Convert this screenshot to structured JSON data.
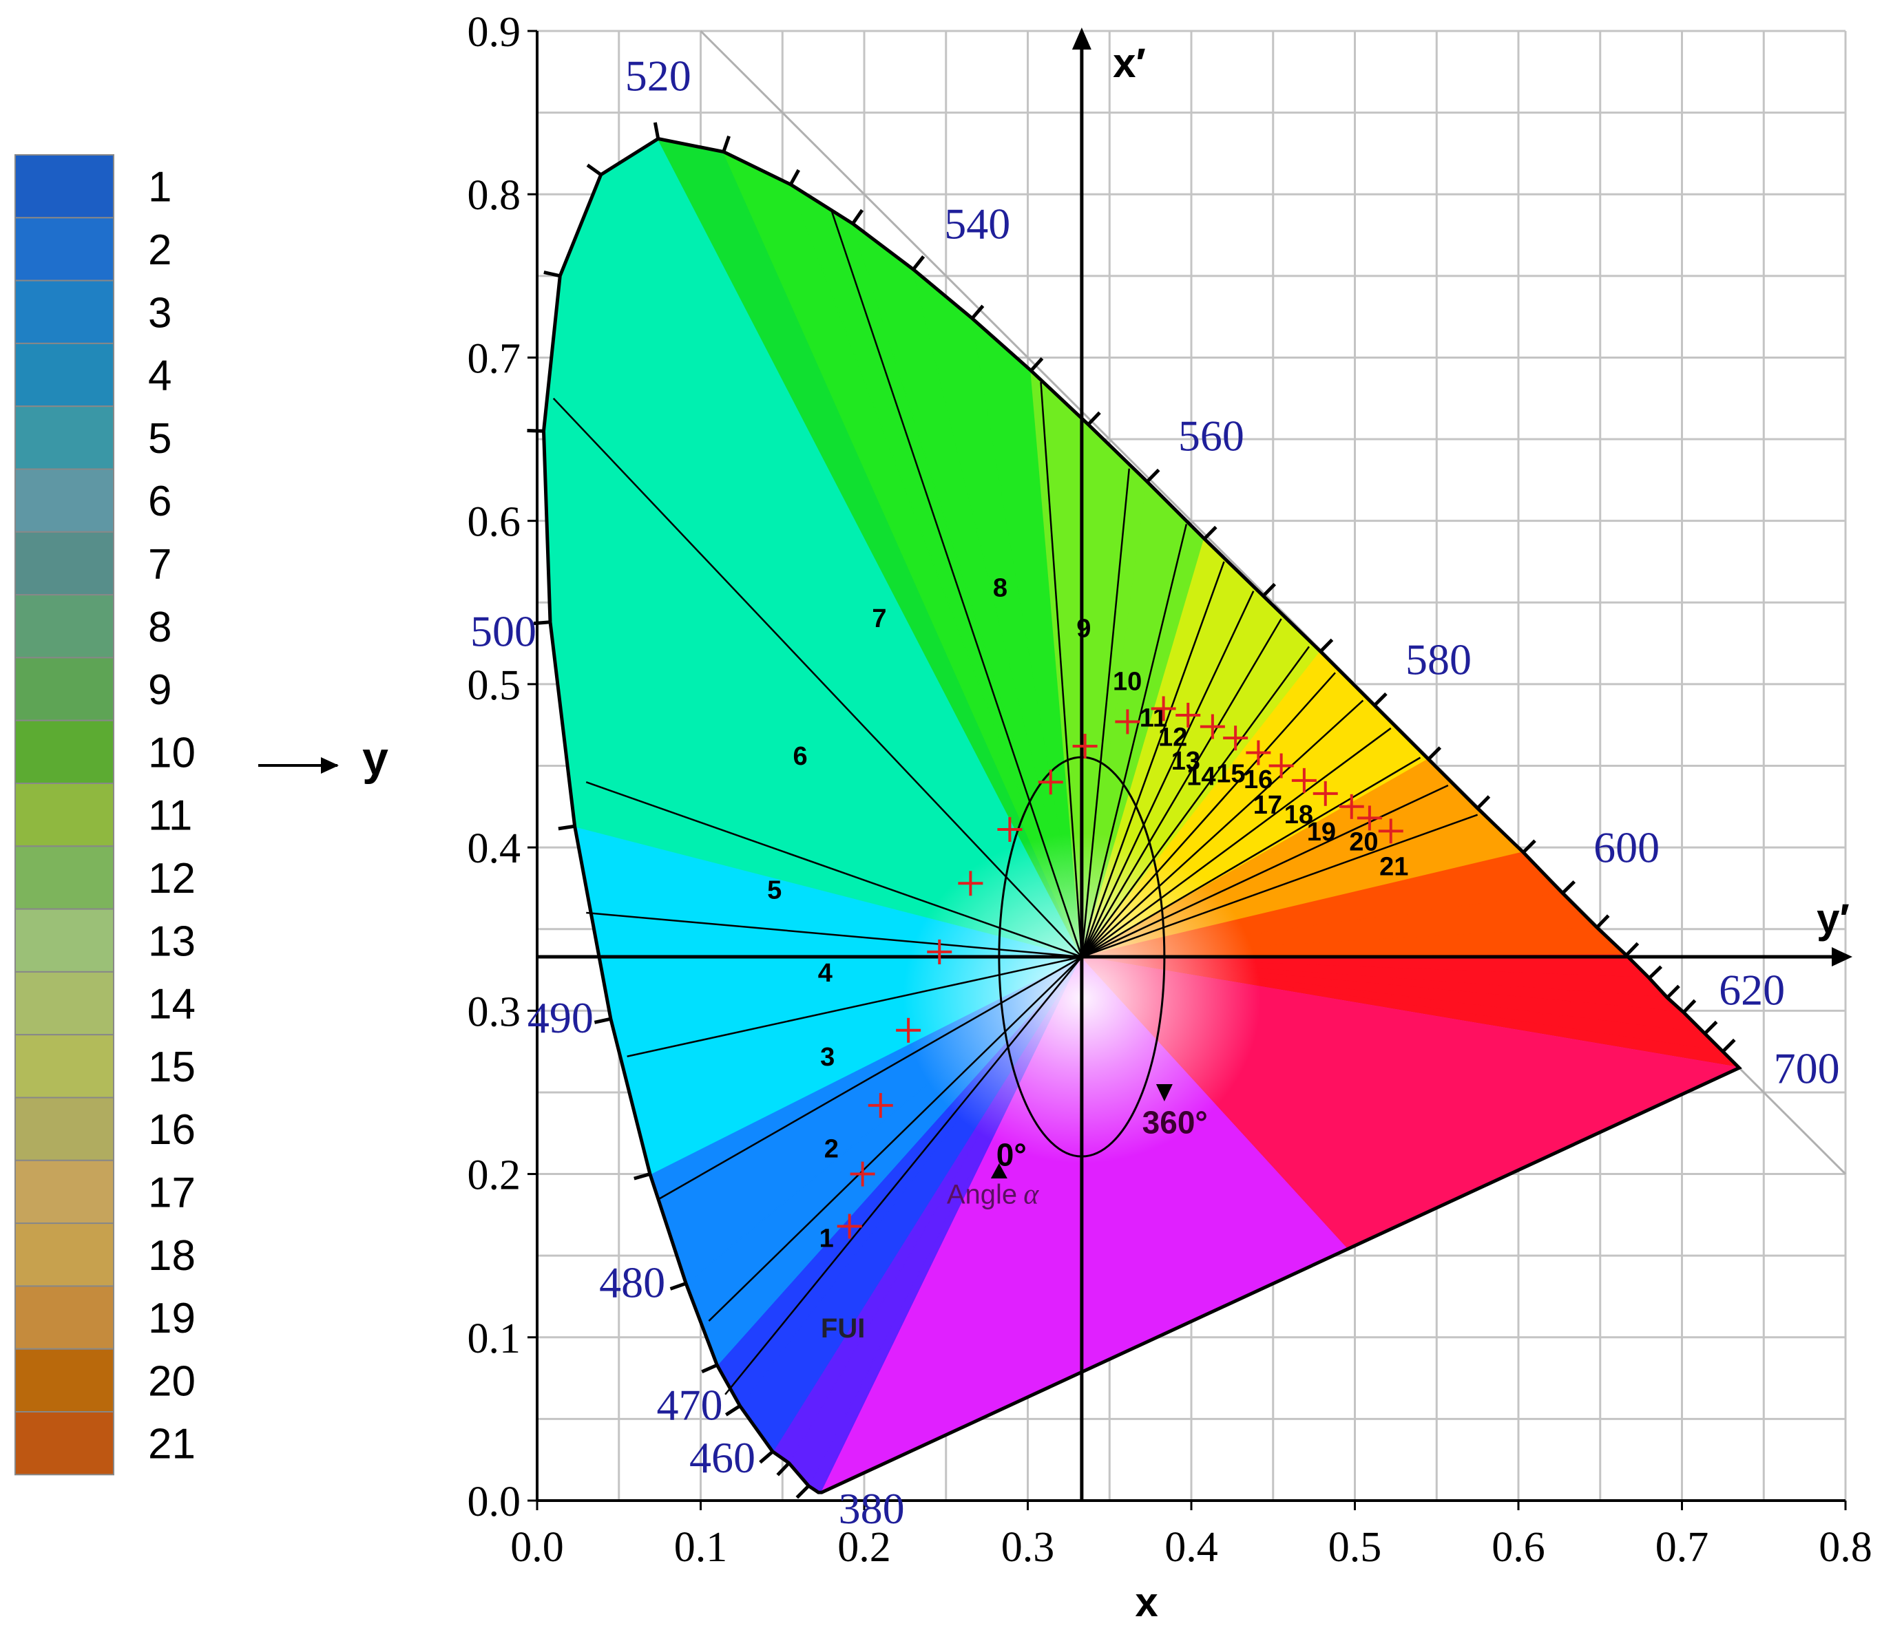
{
  "chart_data": {
    "type": "scatter",
    "title": "",
    "xlabel": "x",
    "ylabel": "y",
    "xlim": [
      0.0,
      0.8
    ],
    "ylim": [
      0.0,
      0.9
    ],
    "grid": true,
    "x_ticks": [
      "0.0",
      "0.1",
      "0.2",
      "0.3",
      "0.4",
      "0.5",
      "0.6",
      "0.7",
      "0.8"
    ],
    "y_ticks": [
      "0.0",
      "0.1",
      "0.2",
      "0.3",
      "0.4",
      "0.5",
      "0.6",
      "0.7",
      "0.8",
      "0.9"
    ],
    "shifted_axes": {
      "x_label": "x′",
      "y_label": "y′",
      "origin": [
        0.333,
        0.333
      ]
    },
    "angle_annotation": {
      "start": "0°",
      "end": "360°",
      "caption": "Angle",
      "symbol": "α"
    },
    "locus_label": "FUI",
    "wavelength_labels": [
      {
        "nm": "380",
        "x": 0.175,
        "y": 0.005
      },
      {
        "nm": "460",
        "x": 0.144,
        "y": 0.03
      },
      {
        "nm": "470",
        "x": 0.124,
        "y": 0.058
      },
      {
        "nm": "480",
        "x": 0.091,
        "y": 0.133
      },
      {
        "nm": "490",
        "x": 0.045,
        "y": 0.295
      },
      {
        "nm": "500",
        "x": 0.008,
        "y": 0.538
      },
      {
        "nm": "520",
        "x": 0.074,
        "y": 0.834
      },
      {
        "nm": "540",
        "x": 0.23,
        "y": 0.754
      },
      {
        "nm": "560",
        "x": 0.373,
        "y": 0.624
      },
      {
        "nm": "580",
        "x": 0.512,
        "y": 0.487
      },
      {
        "nm": "600",
        "x": 0.627,
        "y": 0.372
      },
      {
        "nm": "620",
        "x": 0.691,
        "y": 0.308
      },
      {
        "nm": "700",
        "x": 0.735,
        "y": 0.265
      }
    ],
    "series": [
      {
        "name": "FUI",
        "labels": [
          "1",
          "2",
          "3",
          "4",
          "5",
          "6",
          "7",
          "8",
          "9",
          "10",
          "11",
          "12",
          "13",
          "14",
          "15",
          "16",
          "17",
          "18",
          "19",
          "20",
          "21"
        ],
        "x": [
          0.191,
          0.199,
          0.21,
          0.227,
          0.246,
          0.265,
          0.289,
          0.314,
          0.335,
          0.361,
          0.383,
          0.398,
          0.413,
          0.427,
          0.441,
          0.455,
          0.469,
          0.482,
          0.498,
          0.509,
          0.522
        ],
        "y": [
          0.168,
          0.2,
          0.242,
          0.288,
          0.336,
          0.378,
          0.411,
          0.44,
          0.462,
          0.477,
          0.485,
          0.481,
          0.474,
          0.467,
          0.458,
          0.45,
          0.441,
          0.433,
          0.425,
          0.418,
          0.41
        ]
      }
    ],
    "fui_boundary_lines": [
      {
        "label": "1",
        "x": 0.115,
        "y": 0.065
      },
      {
        "label": "2",
        "x": 0.105,
        "y": 0.11
      },
      {
        "label": "3",
        "x": 0.075,
        "y": 0.185
      },
      {
        "label": "4",
        "x": 0.055,
        "y": 0.272
      },
      {
        "label": "5",
        "x": 0.03,
        "y": 0.36
      },
      {
        "label": "6",
        "x": 0.03,
        "y": 0.44
      },
      {
        "label": "7",
        "x": 0.01,
        "y": 0.675
      },
      {
        "label": "8",
        "x": 0.18,
        "y": 0.79
      },
      {
        "label": "9",
        "x": 0.308,
        "y": 0.685
      },
      {
        "label": "10",
        "x": 0.362,
        "y": 0.632
      },
      {
        "label": "11",
        "x": 0.397,
        "y": 0.598
      },
      {
        "label": "12",
        "x": 0.42,
        "y": 0.575
      },
      {
        "label": "13",
        "x": 0.438,
        "y": 0.557
      },
      {
        "label": "14",
        "x": 0.455,
        "y": 0.54
      },
      {
        "label": "15",
        "x": 0.472,
        "y": 0.523
      },
      {
        "label": "16",
        "x": 0.488,
        "y": 0.507
      },
      {
        "label": "17",
        "x": 0.505,
        "y": 0.49
      },
      {
        "label": "18",
        "x": 0.522,
        "y": 0.473
      },
      {
        "label": "19",
        "x": 0.54,
        "y": 0.455
      },
      {
        "label": "20",
        "x": 0.557,
        "y": 0.438
      },
      {
        "label": "21",
        "x": 0.575,
        "y": 0.42
      }
    ]
  },
  "legend": {
    "items": [
      {
        "label": "1",
        "color": "#1c5ec4"
      },
      {
        "label": "2",
        "color": "#1f6fcc"
      },
      {
        "label": "3",
        "color": "#1f80c4"
      },
      {
        "label": "4",
        "color": "#2289b8"
      },
      {
        "label": "5",
        "color": "#3a97a6"
      },
      {
        "label": "6",
        "color": "#5f97a4"
      },
      {
        "label": "7",
        "color": "#578e8a"
      },
      {
        "label": "8",
        "color": "#5e9e74"
      },
      {
        "label": "9",
        "color": "#5ea455"
      },
      {
        "label": "10",
        "color": "#5cab32"
      },
      {
        "label": "11",
        "color": "#8fb840"
      },
      {
        "label": "12",
        "color": "#7db45c"
      },
      {
        "label": "13",
        "color": "#9bc077"
      },
      {
        "label": "14",
        "color": "#a9bc6a"
      },
      {
        "label": "15",
        "color": "#b2bb5a"
      },
      {
        "label": "16",
        "color": "#b0ac60"
      },
      {
        "label": "17",
        "color": "#c6a45c"
      },
      {
        "label": "18",
        "color": "#c7a14e"
      },
      {
        "label": "19",
        "color": "#c58b3d"
      },
      {
        "label": "20",
        "color": "#b9690c"
      },
      {
        "label": "21",
        "color": "#be5712"
      }
    ]
  },
  "arrow_label": "y",
  "colors": {
    "locus_line": "#000000",
    "wavelength_text": "#1f1f9a",
    "fui_marker": "#e02020",
    "grid": "#bdbdbd"
  }
}
